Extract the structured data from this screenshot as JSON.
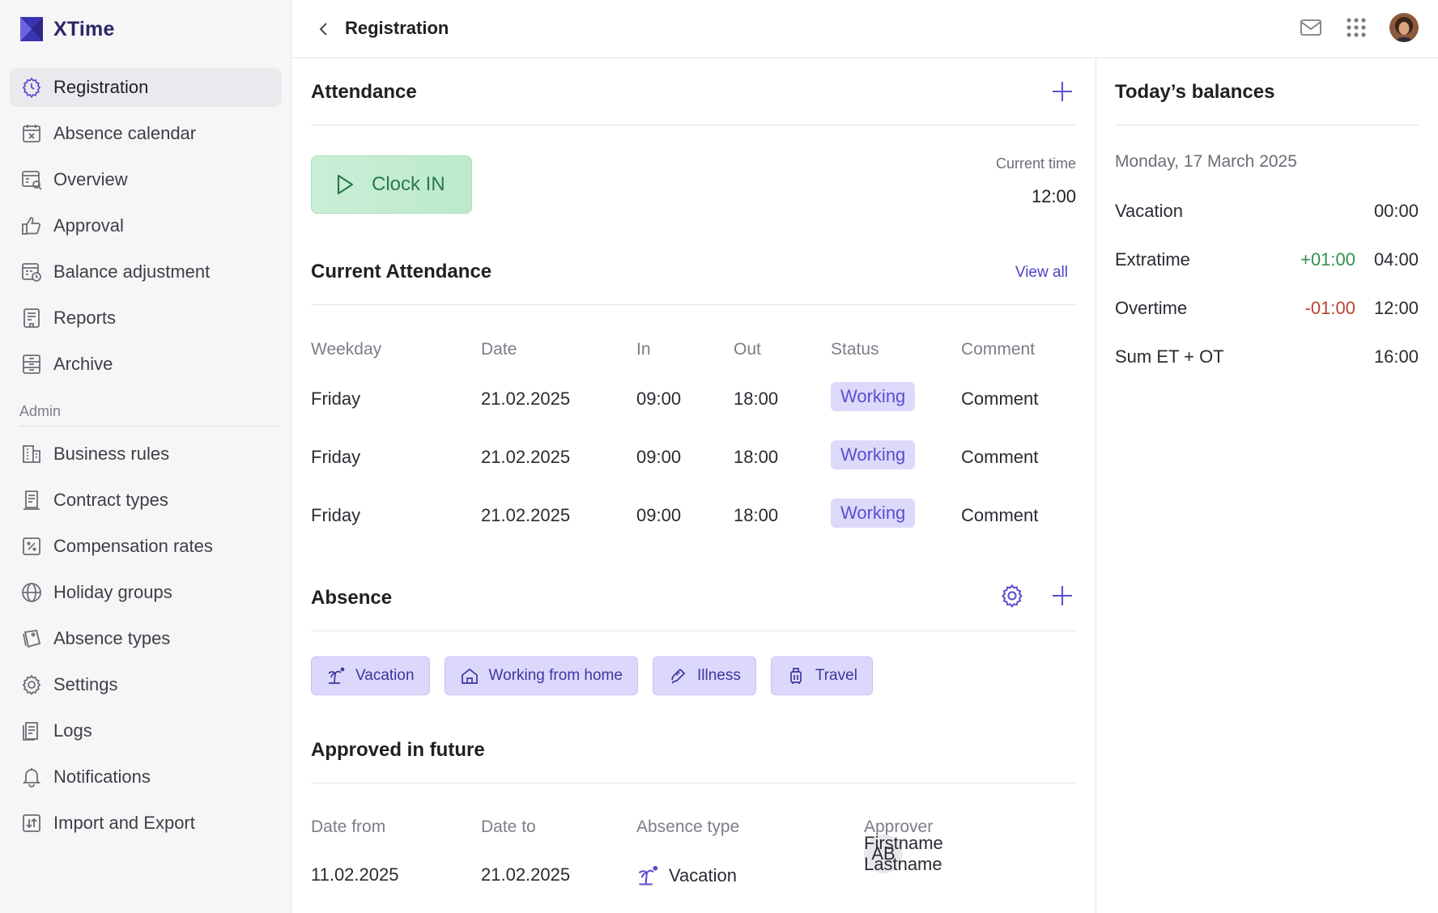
{
  "app": {
    "name": "XTime"
  },
  "sidebar": {
    "items": [
      {
        "label": "Registration",
        "icon": "clock-gear-icon",
        "active": true
      },
      {
        "label": "Absence calendar",
        "icon": "calendar-x-icon"
      },
      {
        "label": "Overview",
        "icon": "calendar-search-icon"
      },
      {
        "label": "Approval",
        "icon": "thumbs-up-icon"
      },
      {
        "label": "Balance adjustment",
        "icon": "calendar-clock-icon"
      },
      {
        "label": "Reports",
        "icon": "report-icon"
      },
      {
        "label": "Archive",
        "icon": "archive-icon"
      }
    ],
    "admin_label": "Admin",
    "admin_items": [
      {
        "label": "Business rules",
        "icon": "building-icon"
      },
      {
        "label": "Contract types",
        "icon": "contract-icon"
      },
      {
        "label": "Compensation rates",
        "icon": "percent-icon"
      },
      {
        "label": "Holiday groups",
        "icon": "globe-icon"
      },
      {
        "label": "Absence types",
        "icon": "tag-icon"
      },
      {
        "label": "Settings",
        "icon": "gear-icon"
      },
      {
        "label": "Logs",
        "icon": "logs-icon"
      },
      {
        "label": "Notifications",
        "icon": "bell-icon"
      },
      {
        "label": "Import and Export",
        "icon": "import-export-icon"
      }
    ]
  },
  "header": {
    "title": "Registration"
  },
  "attendance": {
    "title": "Attendance",
    "clock_in_label": "Clock IN",
    "current_time_label": "Current time",
    "current_time": "12:00"
  },
  "current_attendance": {
    "title": "Current Attendance",
    "view_all": "View all",
    "columns": [
      "Weekday",
      "Date",
      "In",
      "Out",
      "Status",
      "Comment"
    ],
    "rows": [
      {
        "weekday": "Friday",
        "date": "21.02.2025",
        "in": "09:00",
        "out": "18:00",
        "status": "Working",
        "comment": "Comment"
      },
      {
        "weekday": "Friday",
        "date": "21.02.2025",
        "in": "09:00",
        "out": "18:00",
        "status": "Working",
        "comment": "Comment"
      },
      {
        "weekday": "Friday",
        "date": "21.02.2025",
        "in": "09:00",
        "out": "18:00",
        "status": "Working",
        "comment": "Comment"
      }
    ]
  },
  "absence": {
    "title": "Absence",
    "chips": [
      {
        "label": "Vacation",
        "icon": "palm-tree-icon"
      },
      {
        "label": "Working from home",
        "icon": "home-icon"
      },
      {
        "label": "Illness",
        "icon": "thermometer-icon"
      },
      {
        "label": "Travel",
        "icon": "luggage-icon"
      }
    ]
  },
  "approved_future": {
    "title": "Approved in future",
    "columns": [
      "Date from",
      "Date to",
      "Absence type",
      "Approver"
    ],
    "rows": [
      {
        "date_from": "11.02.2025",
        "date_to": "21.02.2025",
        "absence_type": "Vacation",
        "approver_initials": "AB",
        "approver_name": "Firstname Lastname"
      }
    ]
  },
  "balances": {
    "title": "Today’s balances",
    "date": "Monday, 17 March 2025",
    "rows": [
      {
        "name": "Vacation",
        "delta": "",
        "value": "00:00"
      },
      {
        "name": "Extratime",
        "delta": "+01:00",
        "value": "04:00"
      },
      {
        "name": "Overtime",
        "delta": "-01:00",
        "value": "12:00"
      },
      {
        "name": "Sum ET + OT",
        "delta": "",
        "value": "16:00"
      }
    ]
  },
  "colors": {
    "accent": "#5a4ed1",
    "positive": "#2f8f4e",
    "negative": "#b5452f",
    "clock_in": "#c9efd7"
  }
}
